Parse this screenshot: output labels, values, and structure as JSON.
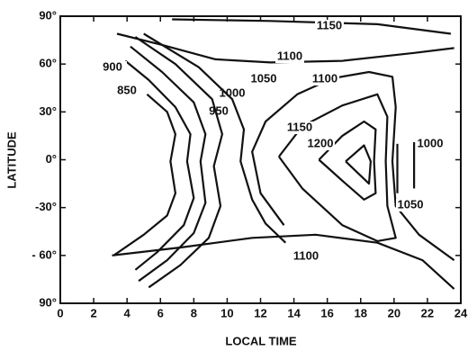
{
  "chart_data": {
    "type": "contour",
    "xlabel": "LOCAL TIME",
    "ylabel": "LATITUDE",
    "xlim": [
      0,
      24
    ],
    "ylim": [
      -90,
      90
    ],
    "xticks": [
      0,
      2,
      4,
      6,
      8,
      10,
      12,
      14,
      16,
      18,
      20,
      22,
      24
    ],
    "yticks": [
      {
        "value": -90,
        "label": "90°"
      },
      {
        "value": -60,
        "label": "- 60°"
      },
      {
        "value": -30,
        "label": "-30°"
      },
      {
        "value": 0,
        "label": "0°"
      },
      {
        "value": 30,
        "label": "30°"
      },
      {
        "value": 60,
        "label": "60°"
      },
      {
        "value": 90,
        "label": "90°"
      }
    ],
    "color": "#111111",
    "contours": [
      {
        "label": 1150,
        "x": [
          6.7,
          12.6,
          19.0,
          23.4
        ],
        "y": [
          88,
          87,
          85,
          79
        ]
      },
      {
        "label": 1100,
        "x": [
          3.4,
          6.1,
          9.3,
          12.6,
          16.9,
          21.2,
          23.6
        ],
        "y": [
          79,
          72,
          63,
          61,
          62,
          67,
          70
        ]
      },
      {
        "label": 850,
        "x": [
          5.2,
          6.4,
          6.9,
          6.6,
          6.9,
          6.4,
          5.0,
          3.2
        ],
        "y": [
          41,
          30,
          16,
          -1,
          -21,
          -35,
          -47,
          -60
        ]
      },
      {
        "label": 900,
        "x": [
          3.9,
          5.3,
          6.9,
          7.8,
          7.6,
          8.0,
          7.4,
          5.8,
          4.5
        ],
        "y": [
          62,
          50,
          33,
          16,
          -1,
          -24,
          -41,
          -58,
          -69
        ]
      },
      {
        "label": 950,
        "x": [
          4.2,
          6.1,
          8.0,
          8.7,
          8.4,
          8.7,
          8.0,
          6.4,
          4.7
        ],
        "y": [
          71,
          55,
          36,
          16,
          -1,
          -27,
          -46,
          -63,
          -76
        ]
      },
      {
        "label": 1000,
        "x": [
          4.5,
          6.9,
          9.1,
          9.7,
          9.2,
          9.6,
          8.9,
          7.2,
          5.3
        ],
        "y": [
          77,
          60,
          38,
          16,
          -4,
          -29,
          -49,
          -66,
          -80
        ]
      },
      {
        "label": 1050,
        "x": [
          5.0,
          8.3,
          10.3,
          11.0,
          10.8,
          11.5,
          12.3,
          13.5
        ],
        "y": [
          79,
          58,
          38,
          19,
          -1,
          -25,
          -40,
          -52
        ]
      },
      {
        "label": 1100,
        "x": [
          23.6,
          21.5,
          20.1,
          19.9,
          20.1,
          19.9,
          18.5,
          16.3,
          14.2,
          12.3,
          11.5,
          12.0,
          13.4
        ],
        "y": [
          -63,
          -47,
          -29,
          -1,
          33,
          52,
          55,
          51,
          41,
          24,
          5,
          -21,
          -41
        ]
      },
      {
        "label": 1150,
        "x": [
          13.1,
          14.5,
          16.9,
          19.0,
          19.6,
          19.5,
          19.6,
          20.1,
          19.0,
          16.9,
          14.5,
          13.1
        ],
        "y": [
          2,
          21,
          34,
          41,
          27,
          -1,
          -29,
          -49,
          -51,
          -41,
          -18,
          2
        ]
      },
      {
        "label": 1200,
        "x": [
          15.5,
          16.9,
          18.2,
          18.9,
          18.8,
          18.9,
          18.2,
          17.1,
          15.5
        ],
        "y": [
          0,
          15,
          24,
          19,
          -1,
          -21,
          -25,
          -15,
          0
        ]
      },
      {
        "x": [
          17.1,
          18.2,
          18.6,
          18.5,
          17.1
        ],
        "y": [
          -1,
          9,
          -1,
          -15,
          -1
        ]
      },
      {
        "label": 1000,
        "x": [
          21.2,
          21.2
        ],
        "y": [
          11,
          -18
        ]
      },
      {
        "label": 1050,
        "x": [
          20.2,
          20.2
        ],
        "y": [
          10,
          -21
        ]
      },
      {
        "label": 1100,
        "x": [
          3.1,
          7.2,
          11.5,
          15.3,
          19.0,
          21.7,
          23.6
        ],
        "y": [
          -60,
          -55,
          -49,
          -47,
          -52,
          -63,
          -81
        ]
      }
    ]
  }
}
